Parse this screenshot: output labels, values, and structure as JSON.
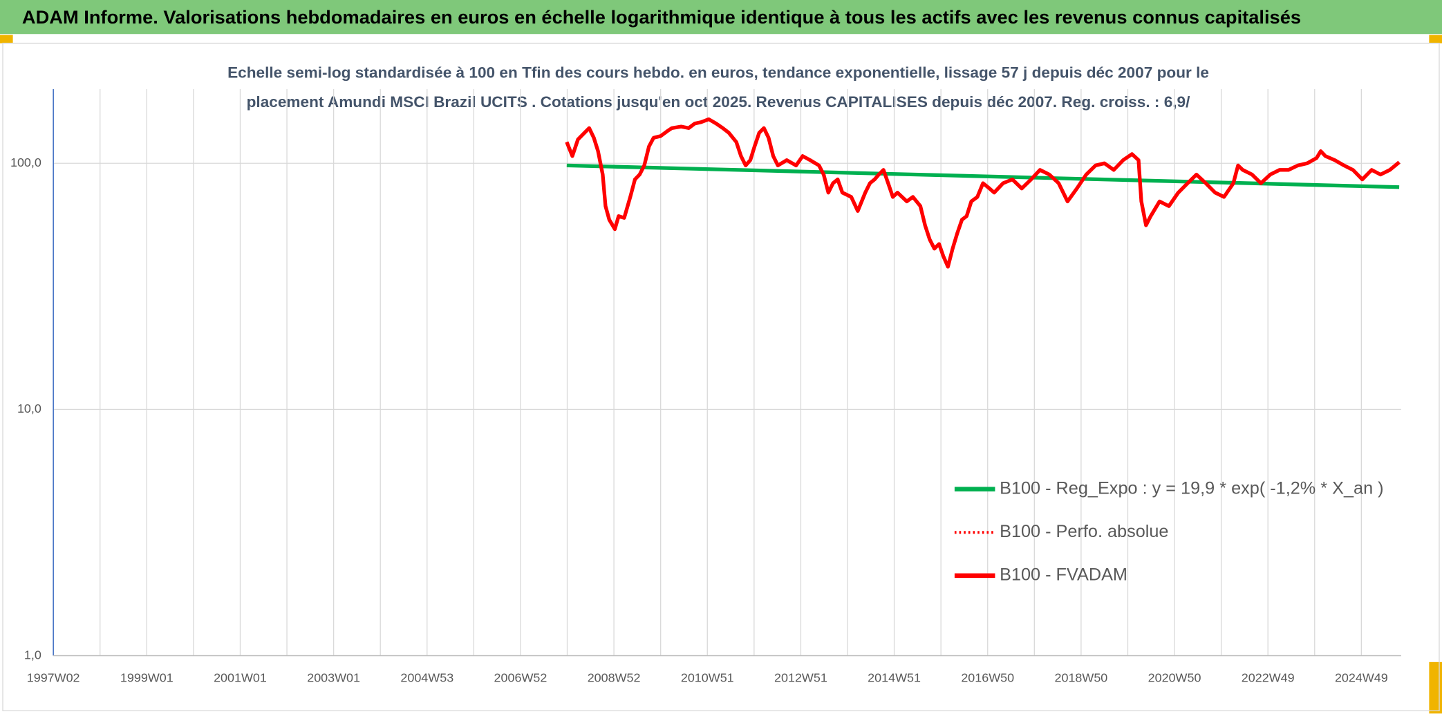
{
  "chart_data": {
    "type": "line",
    "title": "ADAM Informe. Valorisations hebdomadaires en euros en échelle logarithmique identique à tous les actifs avec les revenus connus capitalisés",
    "subtitle": [
      "Echelle semi-log standardisée à 100 en Tfin des cours hebdo. en euros, tendance exponentielle, lissage 57 j depuis déc 2007 pour le",
      "placement Amundi MSCI Brazil UCITS . Cotations jusqu'en oct 2025. Revenus CAPITALISES depuis déc 2007. Reg. croiss. : 6,9/"
    ],
    "log_scale": true,
    "grid": true,
    "legend_position": "right",
    "ylim": [
      1,
      200
    ],
    "yticks": [
      {
        "value": 1,
        "label": "1,0"
      },
      {
        "value": 10,
        "label": "10,0"
      },
      {
        "value": 100,
        "label": "100,0"
      }
    ],
    "xlim": [
      1997,
      2025.85
    ],
    "xticks": [
      {
        "value": 1997,
        "label": "1997W02"
      },
      {
        "value": 1999,
        "label": "1999W01"
      },
      {
        "value": 2001,
        "label": "2001W01"
      },
      {
        "value": 2003,
        "label": "2003W01"
      },
      {
        "value": 2005,
        "label": "2004W53"
      },
      {
        "value": 2007,
        "label": "2006W52"
      },
      {
        "value": 2009,
        "label": "2008W52"
      },
      {
        "value": 2011,
        "label": "2010W51"
      },
      {
        "value": 2013,
        "label": "2012W51"
      },
      {
        "value": 2015,
        "label": "2014W51"
      },
      {
        "value": 2017,
        "label": "2016W50"
      },
      {
        "value": 2019,
        "label": "2018W50"
      },
      {
        "value": 2021,
        "label": "2020W50"
      },
      {
        "value": 2023,
        "label": "2022W49"
      },
      {
        "value": 2025,
        "label": "2024W49"
      }
    ],
    "xgrid": [
      1998,
      2000,
      2002,
      2004,
      2006,
      2008,
      2010,
      2012,
      2014,
      2016,
      2018,
      2020,
      2022,
      2024
    ],
    "series": [
      {
        "name": "B100 - Reg_Expo : y = 19,9 * exp( -1,2% *  X_an )",
        "color": "#00b050",
        "style": "solid",
        "x": [
          2007.99,
          2025.81
        ],
        "values": [
          98,
          80
        ]
      },
      {
        "name": "B100 - Perfo. absolue",
        "color": "#ff0000",
        "style": "dotted",
        "x": [
          2007.99,
          2008.11,
          2008.23,
          2008.37,
          2008.47,
          2008.57,
          2008.66,
          2008.76,
          2008.82,
          2008.9,
          2009.02,
          2009.1,
          2009.22,
          2009.35,
          2009.45,
          2009.55,
          2009.65,
          2009.75,
          2009.85,
          2010.0,
          2010.14,
          2010.24,
          2010.44,
          2010.6,
          2010.73,
          2010.87,
          2011.03,
          2011.19,
          2011.33,
          2011.46,
          2011.62,
          2011.72,
          2011.82,
          2011.92,
          2012.01,
          2012.11,
          2012.21,
          2012.31,
          2012.41,
          2012.51,
          2012.7,
          2012.9,
          2013.04,
          2013.2,
          2013.39,
          2013.49,
          2013.59,
          2013.69,
          2013.79,
          2013.89,
          2014.08,
          2014.22,
          2014.38,
          2014.48,
          2014.58,
          2014.67,
          2014.77,
          2014.87,
          2014.97,
          2015.07,
          2015.27,
          2015.4,
          2015.56,
          2015.66,
          2015.76,
          2015.86,
          2015.96,
          2016.05,
          2016.15,
          2016.25,
          2016.35,
          2016.45,
          2016.55,
          2016.65,
          2016.78,
          2016.9,
          2017.04,
          2017.14,
          2017.33,
          2017.53,
          2017.73,
          2017.93,
          2018.12,
          2018.32,
          2018.52,
          2018.71,
          2018.91,
          2019.11,
          2019.31,
          2019.5,
          2019.7,
          2019.9,
          2020.09,
          2020.23,
          2020.29,
          2020.39,
          2020.49,
          2020.68,
          2020.88,
          2021.08,
          2021.28,
          2021.47,
          2021.67,
          2021.87,
          2022.06,
          2022.26,
          2022.36,
          2022.46,
          2022.66,
          2022.85,
          2023.05,
          2023.25,
          2023.44,
          2023.64,
          2023.84,
          2024.04,
          2024.13,
          2024.23,
          2024.43,
          2024.63,
          2024.82,
          2025.02,
          2025.22,
          2025.41,
          2025.61,
          2025.81
        ],
        "values": [
          122,
          107,
          125,
          133,
          139,
          127,
          112,
          90,
          67,
          59,
          54,
          61,
          60,
          73,
          86,
          90,
          98,
          117,
          127,
          129,
          135,
          139,
          141,
          139,
          145,
          147,
          151,
          145,
          139,
          133,
          122,
          107,
          98,
          103,
          117,
          133,
          139,
          127,
          107,
          98,
          103,
          98,
          107,
          103,
          98,
          90,
          76,
          83,
          86,
          76,
          73,
          64,
          76,
          83,
          86,
          90,
          94,
          83,
          73,
          76,
          70,
          73,
          67,
          56,
          49,
          45,
          47,
          42,
          38,
          45,
          52,
          59,
          61,
          70,
          73,
          83,
          79,
          76,
          83,
          86,
          79,
          86,
          94,
          90,
          83,
          70,
          79,
          90,
          98,
          100,
          94,
          103,
          109,
          103,
          70,
          56,
          61,
          70,
          67,
          76,
          83,
          90,
          83,
          76,
          73,
          83,
          98,
          94,
          90,
          83,
          90,
          94,
          94,
          98,
          100,
          105,
          112,
          107,
          103,
          98,
          94,
          86,
          94,
          90,
          94,
          101
        ]
      },
      {
        "name": "B100 - FVADAM",
        "color": "#ff0000",
        "style": "solid",
        "x": [
          2007.99,
          2008.11,
          2008.23,
          2008.37,
          2008.47,
          2008.57,
          2008.66,
          2008.76,
          2008.82,
          2008.9,
          2009.02,
          2009.1,
          2009.22,
          2009.35,
          2009.45,
          2009.55,
          2009.65,
          2009.75,
          2009.85,
          2010.0,
          2010.14,
          2010.24,
          2010.44,
          2010.6,
          2010.73,
          2010.87,
          2011.03,
          2011.19,
          2011.33,
          2011.46,
          2011.62,
          2011.72,
          2011.82,
          2011.92,
          2012.01,
          2012.11,
          2012.21,
          2012.31,
          2012.41,
          2012.51,
          2012.7,
          2012.9,
          2013.04,
          2013.2,
          2013.39,
          2013.49,
          2013.59,
          2013.69,
          2013.79,
          2013.89,
          2014.08,
          2014.22,
          2014.38,
          2014.48,
          2014.58,
          2014.67,
          2014.77,
          2014.87,
          2014.97,
          2015.07,
          2015.27,
          2015.4,
          2015.56,
          2015.66,
          2015.76,
          2015.86,
          2015.96,
          2016.05,
          2016.15,
          2016.25,
          2016.35,
          2016.45,
          2016.55,
          2016.65,
          2016.78,
          2016.9,
          2017.04,
          2017.14,
          2017.33,
          2017.53,
          2017.73,
          2017.93,
          2018.12,
          2018.32,
          2018.52,
          2018.71,
          2018.91,
          2019.11,
          2019.31,
          2019.5,
          2019.7,
          2019.9,
          2020.09,
          2020.23,
          2020.29,
          2020.39,
          2020.49,
          2020.68,
          2020.88,
          2021.08,
          2021.28,
          2021.47,
          2021.67,
          2021.87,
          2022.06,
          2022.26,
          2022.36,
          2022.46,
          2022.66,
          2022.85,
          2023.05,
          2023.25,
          2023.44,
          2023.64,
          2023.84,
          2024.04,
          2024.13,
          2024.23,
          2024.43,
          2024.63,
          2024.82,
          2025.02,
          2025.22,
          2025.41,
          2025.61,
          2025.81
        ],
        "values": [
          122,
          107,
          125,
          133,
          139,
          127,
          112,
          90,
          67,
          59,
          54,
          61,
          60,
          73,
          86,
          90,
          98,
          117,
          127,
          129,
          135,
          139,
          141,
          139,
          145,
          147,
          151,
          145,
          139,
          133,
          122,
          107,
          98,
          103,
          117,
          133,
          139,
          127,
          107,
          98,
          103,
          98,
          107,
          103,
          98,
          90,
          76,
          83,
          86,
          76,
          73,
          64,
          76,
          83,
          86,
          90,
          94,
          83,
          73,
          76,
          70,
          73,
          67,
          56,
          49,
          45,
          47,
          42,
          38,
          45,
          52,
          59,
          61,
          70,
          73,
          83,
          79,
          76,
          83,
          86,
          79,
          86,
          94,
          90,
          83,
          70,
          79,
          90,
          98,
          100,
          94,
          103,
          109,
          103,
          70,
          56,
          61,
          70,
          67,
          76,
          83,
          90,
          83,
          76,
          73,
          83,
          98,
          94,
          90,
          83,
          90,
          94,
          94,
          98,
          100,
          105,
          112,
          107,
          103,
          98,
          94,
          86,
          94,
          90,
          94,
          101
        ]
      }
    ]
  }
}
